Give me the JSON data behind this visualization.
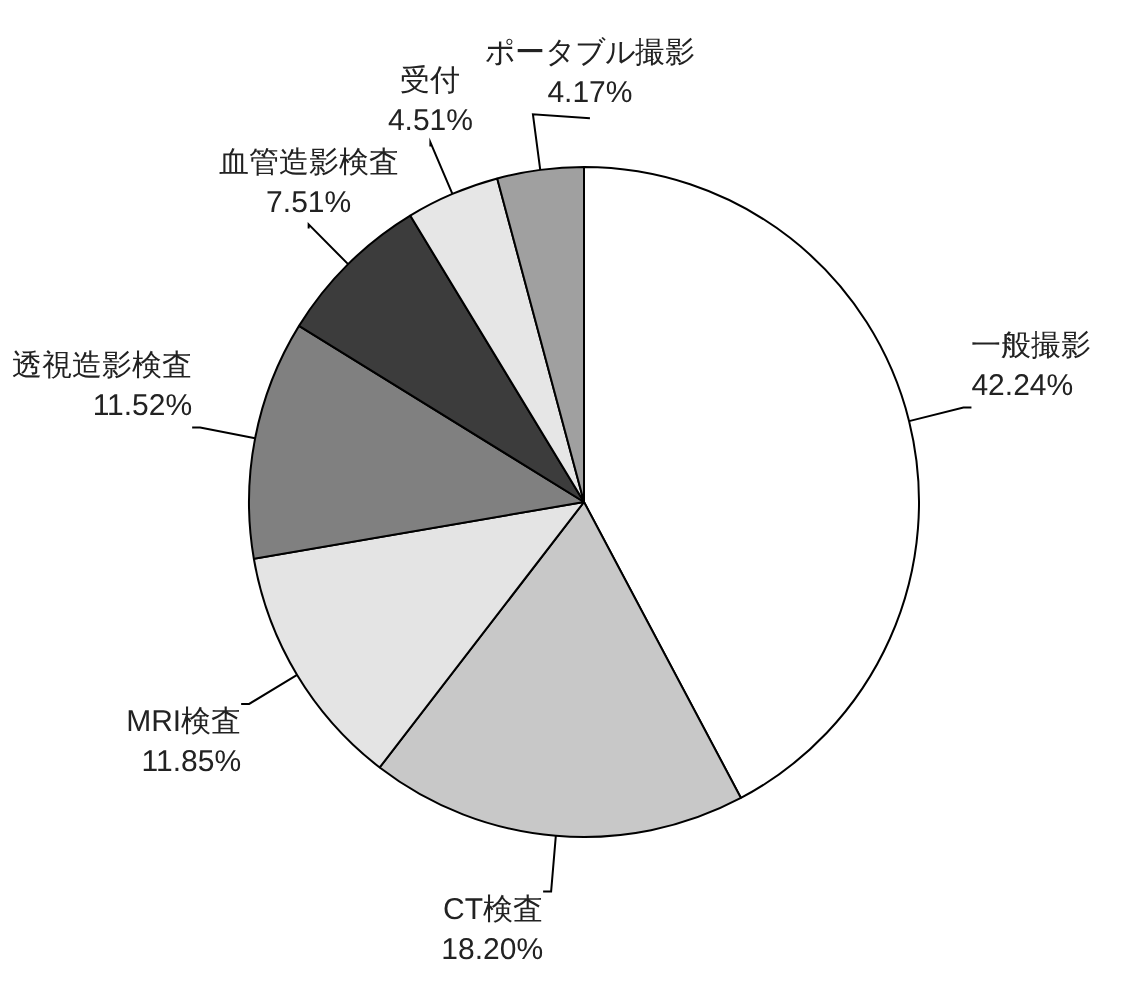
{
  "chart_data": {
    "type": "pie",
    "categories": [
      "一般撮影",
      "CT検査",
      "MRI検査",
      "透視造影検査",
      "血管造影検査",
      "受付",
      "ポータブル撮影"
    ],
    "values": [
      42.24,
      18.2,
      11.85,
      11.52,
      7.51,
      4.51,
      4.17
    ],
    "value_labels": [
      "42.24%",
      "18.20%",
      "11.85%",
      "11.52%",
      "7.51%",
      "4.51%",
      "4.17%"
    ],
    "colors": [
      "#ffffff",
      "#c8c8c8",
      "#e4e4e4",
      "#808080",
      "#3c3c3c",
      "#e6e6e6",
      "#a0a0a0"
    ],
    "legend": false
  }
}
